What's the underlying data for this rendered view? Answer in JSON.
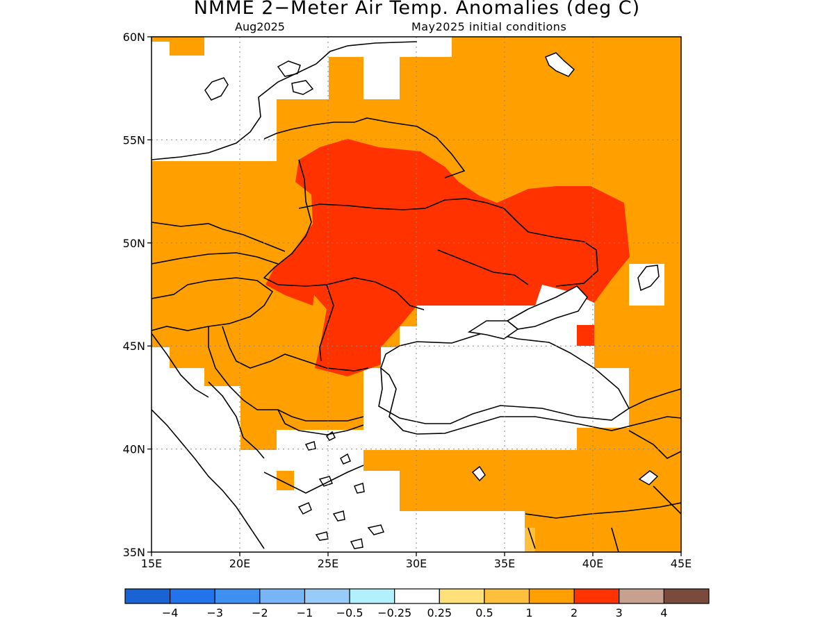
{
  "title": "NMME 2−Meter Air Temp. Anomalies (deg C)",
  "subtitle_left": "Aug2025",
  "subtitle_right": "May2025 initial conditions",
  "map": {
    "lon_range": [
      15,
      45
    ],
    "lat_range": [
      35,
      60
    ],
    "x_ticks": [
      {
        "value": 15,
        "label": "15E"
      },
      {
        "value": 20,
        "label": "20E"
      },
      {
        "value": 25,
        "label": "25E"
      },
      {
        "value": 30,
        "label": "30E"
      },
      {
        "value": 35,
        "label": "35E"
      },
      {
        "value": 40,
        "label": "40E"
      },
      {
        "value": 45,
        "label": "45E"
      }
    ],
    "y_ticks": [
      {
        "value": 60,
        "label": "60N"
      },
      {
        "value": 55,
        "label": "55N"
      },
      {
        "value": 50,
        "label": "50N"
      },
      {
        "value": 45,
        "label": "45N"
      },
      {
        "value": 40,
        "label": "40N"
      },
      {
        "value": 35,
        "label": "35N"
      }
    ],
    "gridlines": "dotted",
    "dominant_category": "1 to 2",
    "hotspot_category": "2 to 3"
  },
  "colorbar": {
    "colors": [
      "#1a63d4",
      "#2273ec",
      "#3f8ff0",
      "#78b5f6",
      "#97cbf8",
      "#b2f1fb",
      "#ffffff",
      "#ffe079",
      "#ffc03c",
      "#ffa000",
      "#ff3200",
      "#c8a090",
      "#7a4a3c"
    ],
    "labels": [
      "−4",
      "−3",
      "−2",
      "−1",
      "−0.5",
      "−0.25",
      "0.25",
      "0.5",
      "1",
      "2",
      "3",
      "4"
    ]
  },
  "colors": {
    "orange": "#ffa000",
    "red": "#ff3200",
    "light_orange": "#ffc03c",
    "outline": "#000000"
  }
}
